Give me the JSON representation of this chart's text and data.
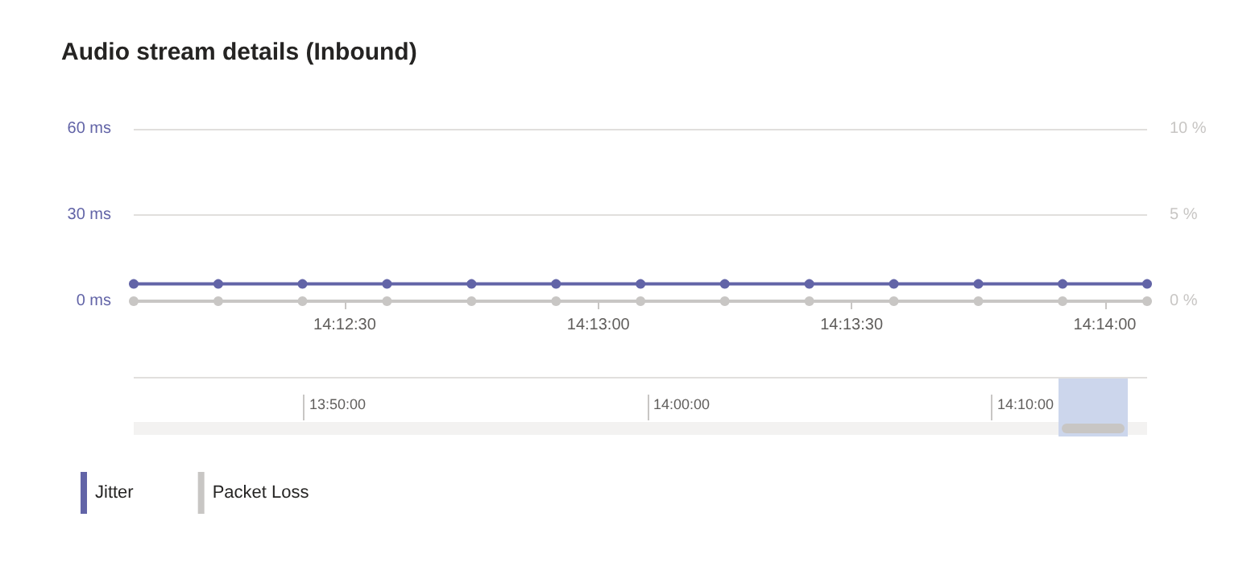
{
  "chart_data": [
    {
      "type": "line",
      "title": "Audio stream details (Inbound)",
      "x": [
        14.20139,
        14.20417,
        14.20694,
        14.20972,
        14.2125,
        14.21528,
        14.21806,
        14.22083,
        14.22361,
        14.22639,
        14.22917,
        14.23194,
        14.23472
      ],
      "series": [
        {
          "name": "Jitter",
          "color": "#6264a7",
          "values": [
            6,
            6,
            6,
            6,
            6,
            6,
            6,
            6,
            6,
            6,
            6,
            6,
            6
          ]
        },
        {
          "name": "Packet Loss",
          "color": "#c8c6c4",
          "axis": "y2",
          "values": [
            0,
            0,
            0,
            0,
            0,
            0,
            0,
            0,
            0,
            0,
            0,
            0,
            0
          ]
        }
      ],
      "xlim": [
        14.20139,
        14.23472
      ],
      "xticks": [
        {
          "value": 14.20833,
          "label": "14:12:30"
        },
        {
          "value": 14.21667,
          "label": "14:13:00"
        },
        {
          "value": 14.225,
          "label": "14:13:30"
        },
        {
          "value": 14.23333,
          "label": "14:14:00"
        }
      ],
      "ylim": [
        0,
        60
      ],
      "yticks": [
        {
          "value": 0,
          "label": "0 ms"
        },
        {
          "value": 30,
          "label": "30 ms"
        },
        {
          "value": 60,
          "label": "60 ms"
        }
      ],
      "y2lim": [
        0,
        10
      ],
      "y2ticks": [
        {
          "value": 0,
          "label": "0 %"
        },
        {
          "value": 5,
          "label": "5 %"
        },
        {
          "value": 10,
          "label": "10 %"
        }
      ],
      "grid": "y",
      "marker": "circle",
      "line_style": "solid",
      "legend": "bottom left"
    },
    {
      "type": "other",
      "annotations": [
        "13:50:00",
        "14:00:00",
        "14:10:00"
      ]
    }
  ]
}
